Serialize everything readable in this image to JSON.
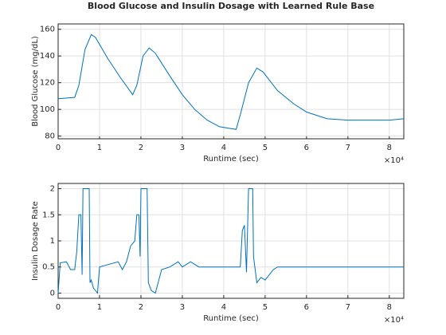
{
  "chart_data": [
    {
      "type": "line",
      "title": "Blood Glucose and Insulin Dosage with Learned Rule Base",
      "x_label": "Runtime (sec)",
      "y_label": "Blood Glucose (mg/dL)",
      "x_exponent_label": "×10⁴",
      "grid": true,
      "xlim": [
        0,
        83500
      ],
      "ylim": [
        78,
        164
      ],
      "xticks": [
        {
          "value": 0,
          "label": "0"
        },
        {
          "value": 10000,
          "label": "1"
        },
        {
          "value": 20000,
          "label": "2"
        },
        {
          "value": 30000,
          "label": "3"
        },
        {
          "value": 40000,
          "label": "4"
        },
        {
          "value": 50000,
          "label": "5"
        },
        {
          "value": 60000,
          "label": "6"
        },
        {
          "value": 70000,
          "label": "7"
        },
        {
          "value": 80000,
          "label": "8"
        }
      ],
      "yticks": [
        80,
        100,
        120,
        140,
        160
      ],
      "x": [
        0,
        4000,
        5000,
        6500,
        8000,
        9000,
        12000,
        15000,
        18000,
        19000,
        20500,
        22000,
        23500,
        27000,
        30000,
        33000,
        36000,
        39000,
        43000,
        44000,
        46000,
        48000,
        49500,
        53000,
        57000,
        60000,
        65000,
        70000,
        75000,
        80000,
        83500
      ],
      "series": [
        {
          "name": "Blood Glucose",
          "color": "#0072bd",
          "values": [
            108,
            109,
            118,
            145,
            156,
            154,
            138,
            124,
            111,
            118,
            140,
            146,
            142,
            125,
            111,
            100,
            92,
            87,
            85,
            96,
            120,
            131,
            128,
            114,
            104,
            98,
            93,
            92,
            92,
            92,
            93
          ]
        }
      ]
    },
    {
      "type": "line",
      "x_label": "Runtime (sec)",
      "y_label": "Insulin Dosage Rate",
      "x_exponent_label": "×10⁴",
      "grid": true,
      "xlim": [
        0,
        83500
      ],
      "ylim": [
        -0.1,
        2.1
      ],
      "xticks": [
        {
          "value": 0,
          "label": "0"
        },
        {
          "value": 10000,
          "label": "1"
        },
        {
          "value": 20000,
          "label": "2"
        },
        {
          "value": 30000,
          "label": "3"
        },
        {
          "value": 40000,
          "label": "4"
        },
        {
          "value": 50000,
          "label": "5"
        },
        {
          "value": 60000,
          "label": "6"
        },
        {
          "value": 70000,
          "label": "7"
        },
        {
          "value": 80000,
          "label": "8"
        }
      ],
      "yticks": [
        0,
        0.5,
        1,
        1.5,
        2
      ],
      "x": [
        0,
        500,
        2000,
        3000,
        4000,
        4500,
        5000,
        5500,
        5800,
        6000,
        7500,
        7700,
        8000,
        8500,
        9500,
        10000,
        14500,
        15500,
        16500,
        17500,
        18500,
        19000,
        19500,
        19800,
        20000,
        21500,
        21800,
        22500,
        23500,
        25000,
        27000,
        29000,
        30000,
        32000,
        34000,
        44000,
        44500,
        45000,
        45500,
        46000,
        47000,
        47200,
        48000,
        49000,
        50000,
        52000,
        53000,
        83500
      ],
      "series": [
        {
          "name": "Insulin Dosage",
          "color": "#0072bd",
          "values": [
            0,
            0.58,
            0.6,
            0.45,
            0.45,
            0.8,
            1.5,
            1.5,
            0.35,
            2,
            2,
            0.2,
            0.25,
            0.1,
            0,
            0.5,
            0.6,
            0.45,
            0.6,
            0.9,
            1,
            1.5,
            1.5,
            0.7,
            2,
            2,
            0.2,
            0.05,
            0,
            0.45,
            0.5,
            0.6,
            0.5,
            0.6,
            0.5,
            0.5,
            1.2,
            1.3,
            0.4,
            2,
            2,
            0.7,
            0.2,
            0.3,
            0.25,
            0.45,
            0.5,
            0.5
          ]
        }
      ]
    }
  ]
}
